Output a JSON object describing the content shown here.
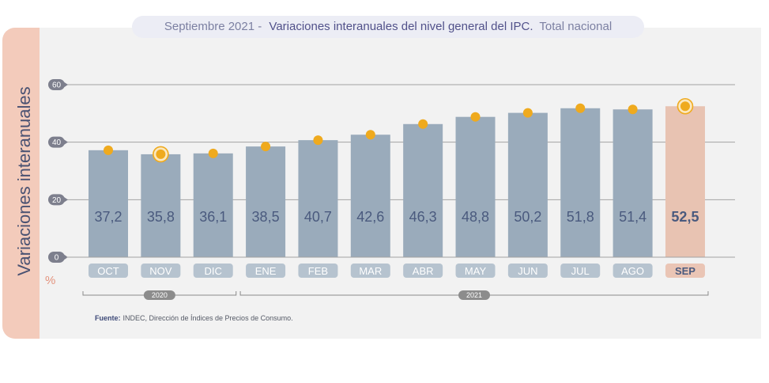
{
  "source": {
    "label": "Fuente:",
    "text": "INDEC, Dirección de Índices de Precios de Consumo."
  },
  "colors": {
    "panel": "#f2f2f2",
    "strip": "#f3cbbb",
    "bar": "#9aabbb",
    "bar_highlight": "#e8c3b2",
    "category_pill": "#b6c3cf",
    "category_pill_highlight": "#eac5b5",
    "marker": "#efaa1e",
    "marker_ring_fill": "#fbe8bf",
    "value_label": "#4a5a7e",
    "gridline": "#a3a3a3",
    "tick_badge": "#7d7f8d",
    "year_badge": "#8c8c8c"
  },
  "chart_data": {
    "type": "bar",
    "title_prefix": "Septiembre 2021 -",
    "title": "Variaciones interanuales del nivel general del IPC.",
    "title_suffix": "Total nacional",
    "ylabel": "Variaciones interanuales",
    "yunit": "%",
    "ylim": [
      0,
      60
    ],
    "yticks": [
      0,
      20,
      40,
      60
    ],
    "grid": true,
    "categories": [
      "OCT",
      "NOV",
      "DIC",
      "ENE",
      "FEB",
      "MAR",
      "ABR",
      "MAY",
      "JUN",
      "JUL",
      "AGO",
      "SEP"
    ],
    "values": [
      37.2,
      35.8,
      36.1,
      38.5,
      40.7,
      42.6,
      46.3,
      48.8,
      50.2,
      51.8,
      51.4,
      52.5
    ],
    "data_labels": [
      "37,2",
      "35,8",
      "36,1",
      "38,5",
      "40,7",
      "42,6",
      "46,3",
      "48,8",
      "50,2",
      "51,8",
      "51,4",
      "52,5"
    ],
    "highlight": [
      false,
      false,
      false,
      false,
      false,
      false,
      false,
      false,
      false,
      false,
      false,
      true
    ],
    "point_markers": true,
    "marker_ring": [
      false,
      true,
      false,
      false,
      false,
      false,
      false,
      false,
      false,
      false,
      false,
      true
    ],
    "year_groups": [
      {
        "label": "2020",
        "count": 3
      },
      {
        "label": "2021",
        "count": 9
      }
    ]
  }
}
